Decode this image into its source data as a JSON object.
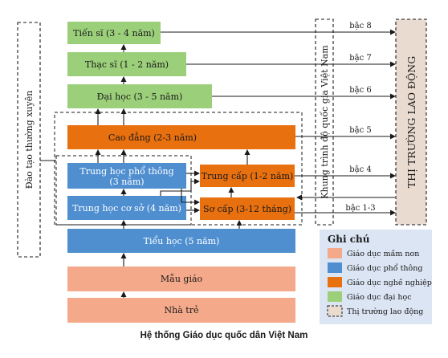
{
  "colors": {
    "preschool": "#f4a98a",
    "general": "#4f8fd0",
    "vocational": "#e8700f",
    "university": "#9bcf7a",
    "labor": "#eadbd0",
    "legend_bg": "#dbe5f3"
  },
  "boxes": {
    "tien_si": "Tiến sĩ (3 - 4 năm)",
    "thac_si": "Thạc sĩ (1 - 2 năm)",
    "dai_hoc": "Đại học (3 - 5 năm)",
    "cao_dang": "Cao đẳng (2-3 năm)",
    "thpt_line1": "Trung học phổ thông",
    "thpt_line2": "(3 năm)",
    "trung_cap": "Trung cấp (1-2 năm)",
    "thcs": "Trung học cơ sở (4 năm)",
    "so_cap": "Sơ cấp (3-12 tháng)",
    "tieu_hoc": "Tiểu học (5 năm)",
    "mau_giao": "Mẫu giáo",
    "nha_tre": "Nhà trẻ"
  },
  "side_labels": {
    "continuing": "Đào tạo thường xuyên",
    "framework": "Khung trình độ quốc gia Việt Nam",
    "labor_market": "THỊ TRƯỜNG LAO ĐỘNG"
  },
  "levels": {
    "bac8": "bậc 8",
    "bac7": "bậc 7",
    "bac6": "bậc 6",
    "bac5": "bậc 5",
    "bac4": "bậc 4",
    "bac13": "bậc 1-3"
  },
  "legend": {
    "title": "Ghi chú",
    "items": [
      "Giáo dục mầm non",
      "Giáo dục phổ thông",
      "Giáo dục nghề nghiệp",
      "Giáo dục đại học",
      "Thị trường lao động"
    ]
  },
  "caption": "Hệ thống Giáo dục quốc dân Việt Nam"
}
